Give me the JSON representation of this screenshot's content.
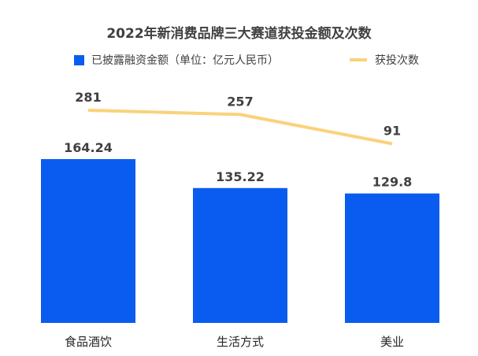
{
  "chart_data": {
    "type": "bar",
    "title": "2022年新消费品牌三大赛道获投金额及次数",
    "categories": [
      "食品酒饮",
      "生活方式",
      "美业"
    ],
    "series": [
      {
        "name": "已披露融资金额（单位：亿元人民币）",
        "type": "bar",
        "values": [
          164.24,
          135.22,
          129.8
        ],
        "color": "#0a5cf0"
      },
      {
        "name": "获投次数",
        "type": "line",
        "values": [
          281,
          257,
          91
        ],
        "color": "#fad27a"
      }
    ],
    "value_labels": {
      "bar": [
        "164.24",
        "135.22",
        "129.8"
      ],
      "line": [
        "281",
        "257",
        "91"
      ]
    },
    "grid": false,
    "legend": "top"
  }
}
